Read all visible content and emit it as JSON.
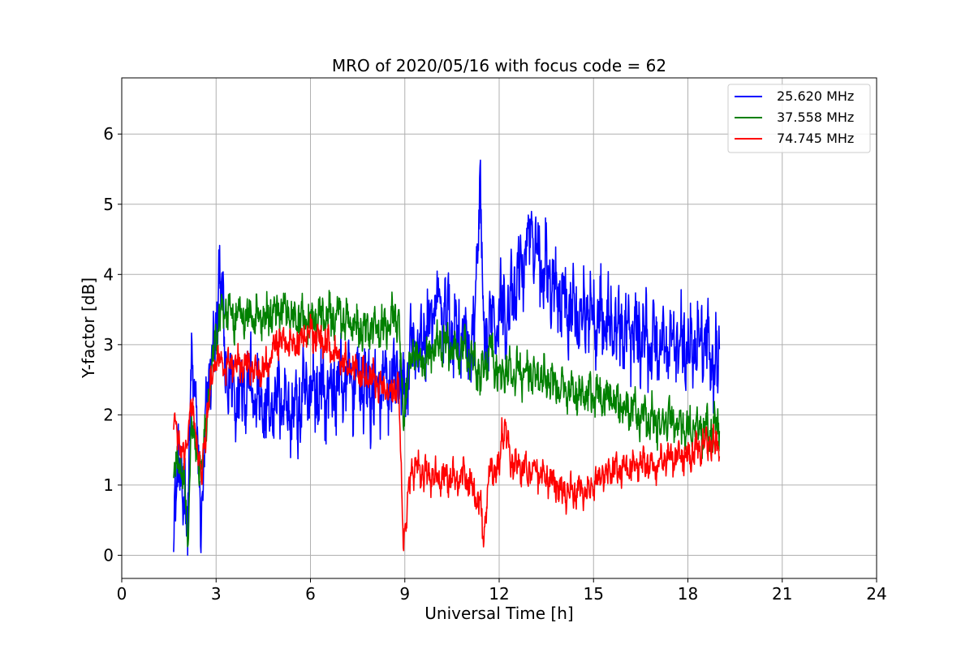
{
  "chart_data": {
    "type": "line",
    "title": "MRO of 2020/05/16 with focus code = 62",
    "xlabel": "Universal Time [h]",
    "ylabel": "Y-factor [dB]",
    "xlim": [
      0,
      24
    ],
    "ylim": [
      -0.33,
      6.8
    ],
    "x_ticks": [
      0,
      3,
      6,
      9,
      12,
      15,
      18,
      21,
      24
    ],
    "y_ticks": [
      0,
      1,
      2,
      3,
      4,
      5,
      6
    ],
    "grid": true,
    "legend_position": "top-right",
    "series": [
      {
        "name": "25.620 MHz",
        "color": "#0000ff",
        "x": [
          1.65,
          1.85,
          2.0,
          2.1,
          2.2,
          2.35,
          2.55,
          2.75,
          3.0,
          3.1,
          3.3,
          3.6,
          4.0,
          4.5,
          5.0,
          5.5,
          6.0,
          6.5,
          7.0,
          7.5,
          8.0,
          8.5,
          8.8,
          8.95,
          9.2,
          9.5,
          9.8,
          10.0,
          10.3,
          10.6,
          10.9,
          11.2,
          11.4,
          11.5,
          11.7,
          12.0,
          12.3,
          12.6,
          12.8,
          13.0,
          13.3,
          13.6,
          14.0,
          14.5,
          15.0,
          15.5,
          16.0,
          16.5,
          17.0,
          17.5,
          18.0,
          18.5,
          19.0
        ],
        "y": [
          0.7,
          1.2,
          0.9,
          0.1,
          3.0,
          2.0,
          0.5,
          2.6,
          3.0,
          4.3,
          2.6,
          2.3,
          2.5,
          2.0,
          2.3,
          2.0,
          2.4,
          2.3,
          2.5,
          2.5,
          2.3,
          2.4,
          2.6,
          2.2,
          2.9,
          3.0,
          3.3,
          3.6,
          3.4,
          3.2,
          3.1,
          3.0,
          5.5,
          2.8,
          3.3,
          3.5,
          3.5,
          3.9,
          4.3,
          4.6,
          4.2,
          4.0,
          3.7,
          3.4,
          3.5,
          3.3,
          3.2,
          3.1,
          3.0,
          3.0,
          3.0,
          3.1,
          2.6
        ]
      },
      {
        "name": "37.558 MHz",
        "color": "#008000",
        "x": [
          1.65,
          1.85,
          2.0,
          2.1,
          2.2,
          2.35,
          2.55,
          2.75,
          3.0,
          3.2,
          3.6,
          4.0,
          4.5,
          5.0,
          5.5,
          6.0,
          6.5,
          7.0,
          7.5,
          8.0,
          8.5,
          8.8,
          8.95,
          9.1,
          9.3,
          9.6,
          10.0,
          10.3,
          10.6,
          10.9,
          11.2,
          11.4,
          11.7,
          12.0,
          12.5,
          13.0,
          13.5,
          14.0,
          14.5,
          15.0,
          15.5,
          16.0,
          16.5,
          17.0,
          17.5,
          18.0,
          18.5,
          19.0
        ],
        "y": [
          1.2,
          1.3,
          1.0,
          0.1,
          2.0,
          1.5,
          1.3,
          2.2,
          3.2,
          3.5,
          3.4,
          3.4,
          3.4,
          3.5,
          3.4,
          3.3,
          3.4,
          3.4,
          3.2,
          3.2,
          3.3,
          3.4,
          2.0,
          2.6,
          2.9,
          2.7,
          3.0,
          3.0,
          2.9,
          2.9,
          2.8,
          2.5,
          2.9,
          2.6,
          2.6,
          2.6,
          2.5,
          2.4,
          2.3,
          2.3,
          2.2,
          2.1,
          2.0,
          1.9,
          1.9,
          1.8,
          1.8,
          1.8
        ]
      },
      {
        "name": "74.745 MHz",
        "color": "#ff0000",
        "x": [
          1.65,
          1.85,
          2.0,
          2.2,
          2.35,
          2.55,
          2.75,
          3.0,
          3.3,
          3.6,
          4.0,
          4.5,
          5.0,
          5.5,
          6.0,
          6.5,
          7.0,
          7.5,
          8.0,
          8.5,
          8.8,
          8.95,
          9.05,
          9.2,
          9.5,
          9.8,
          10.2,
          10.6,
          11.0,
          11.4,
          11.5,
          11.7,
          12.0,
          12.1,
          12.4,
          12.8,
          13.2,
          13.6,
          14.0,
          14.5,
          15.0,
          15.5,
          16.0,
          16.5,
          17.0,
          17.5,
          18.0,
          18.5,
          19.0
        ],
        "y": [
          1.9,
          1.6,
          1.3,
          2.2,
          1.7,
          1.1,
          2.2,
          2.8,
          2.7,
          2.7,
          2.7,
          2.6,
          3.1,
          3.0,
          3.2,
          3.0,
          2.8,
          2.6,
          2.5,
          2.3,
          2.4,
          0.3,
          0.5,
          1.2,
          1.2,
          1.1,
          1.1,
          1.1,
          1.1,
          0.7,
          0.3,
          1.2,
          1.2,
          1.9,
          1.3,
          1.2,
          1.2,
          1.1,
          0.9,
          0.9,
          1.0,
          1.2,
          1.2,
          1.3,
          1.3,
          1.4,
          1.4,
          1.6,
          1.6
        ]
      }
    ]
  }
}
